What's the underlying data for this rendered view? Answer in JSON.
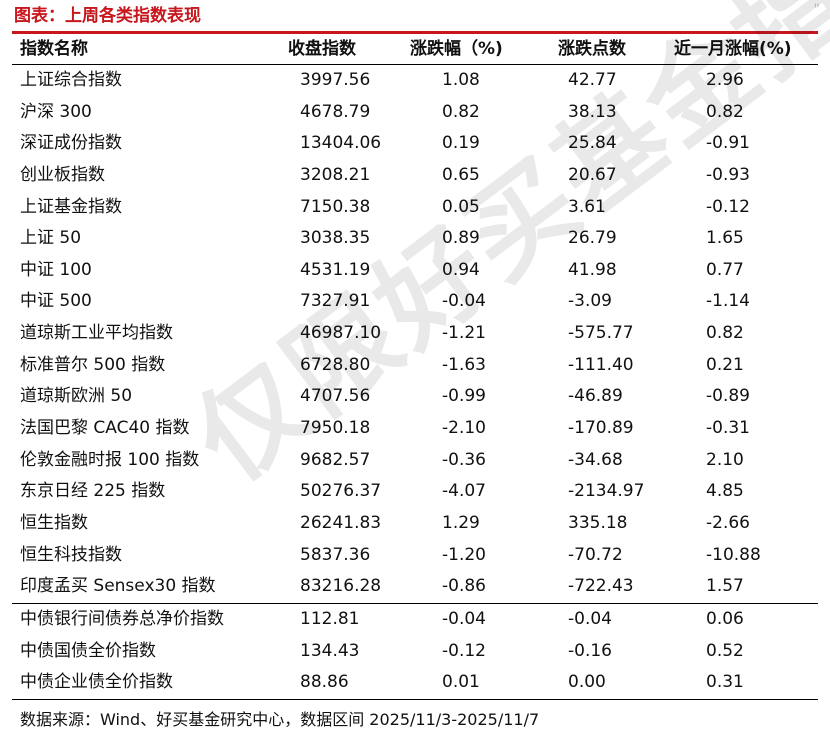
{
  "title": "图表：上周各类指数表现",
  "corner_mark": "\"",
  "columns": [
    "指数名称",
    "收盘指数",
    "涨跌幅（%)",
    "涨跌点数",
    "近一月涨幅(%)"
  ],
  "rows_group1": [
    [
      "上证综合指数",
      "3997.56",
      "1.08",
      "42.77",
      "2.96"
    ],
    [
      "沪深 300",
      "4678.79",
      "0.82",
      "38.13",
      "0.82"
    ],
    [
      "深证成份指数",
      "13404.06",
      "0.19",
      "25.84",
      "-0.91"
    ],
    [
      "创业板指数",
      "3208.21",
      "0.65",
      "20.67",
      "-0.93"
    ],
    [
      "上证基金指数",
      "7150.38",
      "0.05",
      "3.61",
      "-0.12"
    ],
    [
      "上证 50",
      "3038.35",
      "0.89",
      "26.79",
      "1.65"
    ],
    [
      "中证 100",
      "4531.19",
      "0.94",
      "41.98",
      "0.77"
    ],
    [
      "中证 500",
      "7327.91",
      "-0.04",
      "-3.09",
      "-1.14"
    ],
    [
      "道琼斯工业平均指数",
      "46987.10",
      "-1.21",
      "-575.77",
      "0.82"
    ],
    [
      "标准普尔 500 指数",
      "6728.80",
      "-1.63",
      "-111.40",
      "0.21"
    ],
    [
      "道琼斯欧洲 50",
      "4707.56",
      "-0.99",
      "-46.89",
      "-0.89"
    ],
    [
      "法国巴黎 CAC40 指数",
      "7950.18",
      "-2.10",
      "-170.89",
      "-0.31"
    ],
    [
      "伦敦金融时报 100 指数",
      "9682.57",
      "-0.36",
      "-34.68",
      "2.10"
    ],
    [
      "东京日经 225 指数",
      "50276.37",
      "-4.07",
      "-2134.97",
      "4.85"
    ],
    [
      "恒生指数",
      "26241.83",
      "1.29",
      "335.18",
      "-2.66"
    ],
    [
      "恒生科技指数",
      "5837.36",
      "-1.20",
      "-70.72",
      "-10.88"
    ],
    [
      "印度孟买 Sensex30 指数",
      "83216.28",
      "-0.86",
      "-722.43",
      "1.57"
    ]
  ],
  "rows_group2": [
    [
      "中债银行间债券总净价指数",
      "112.81",
      "-0.04",
      "-0.04",
      "0.06"
    ],
    [
      "中债国债全价指数",
      "134.43",
      "-0.12",
      "-0.16",
      "0.52"
    ],
    [
      "中债企业债全价指数",
      "88.86",
      "0.01",
      "0.00",
      "0.31"
    ]
  ],
  "source": "数据来源：Wind、好买基金研究中心，数据区间 2025/11/3-2025/11/7",
  "watermark": "仅限好买基金指定客户"
}
